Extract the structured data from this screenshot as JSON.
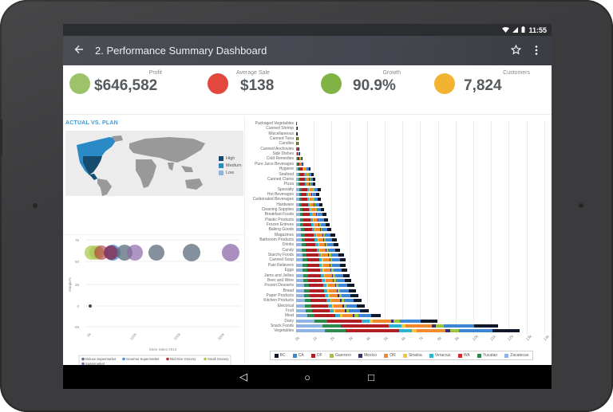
{
  "statusbar": {
    "wifi_icon": "wifi-icon",
    "signal_icon": "signal-icon",
    "battery_icon": "battery-icon",
    "time": "11:55"
  },
  "appbar": {
    "back_icon": "arrow-left-icon",
    "title": "2. Performance Summary Dashboard",
    "star_icon": "star-outline-icon",
    "more_icon": "more-vert-icon"
  },
  "kpis": [
    {
      "label": "Profit",
      "value": "$646,582",
      "color": "#9dc36a"
    },
    {
      "label": "Average Sale",
      "value": "$138",
      "color": "#e2483d"
    },
    {
      "label": "Growth",
      "value": "90.9%",
      "color": "#80b343"
    },
    {
      "label": "Customers",
      "value": "7,824",
      "color": "#f2b331"
    }
  ],
  "map_panel": {
    "title": "ACTUAL VS. PLAN",
    "legend": [
      {
        "label": "High",
        "color": "#154b6e"
      },
      {
        "label": "Medium",
        "color": "#2a8ac6"
      },
      {
        "label": "Low",
        "color": "#8fb4da"
      }
    ]
  },
  "chart_data": [
    {
      "type": "scatter",
      "title": "",
      "xlabel": "Store Sales 2013",
      "ylabel": "Margin%",
      "x_ticks": [
        "0k",
        "100k",
        "200k",
        "300k"
      ],
      "y_ticks": [
        "75",
        "50",
        "25",
        "0",
        "-25"
      ],
      "xlim": [
        0,
        340000
      ],
      "ylim": [
        -25,
        75
      ],
      "legend_position": "bottom",
      "series": [
        {
          "name": "Deluxe Supermarket",
          "color": "#5b6b7a",
          "points": [
            {
              "x": 0,
              "y": 0,
              "r": 1
            },
            {
              "x": 77000,
              "y": 60,
              "r": 8
            },
            {
              "x": 145000,
              "y": 60,
              "r": 8
            },
            {
              "x": 230000,
              "y": 60,
              "r": 9
            }
          ]
        },
        {
          "name": "Gourmet Supermarket",
          "color": "#4a90d9",
          "points": [
            {
              "x": 45000,
              "y": 60,
              "r": 8
            }
          ]
        },
        {
          "name": "Mid-Size Grocery",
          "color": "#b0303a",
          "points": [
            {
              "x": 18000,
              "y": 60,
              "r": 7
            },
            {
              "x": 42000,
              "y": 60,
              "r": 7
            }
          ]
        },
        {
          "name": "Small Grocery",
          "color": "#a8c84a",
          "points": [
            {
              "x": 6000,
              "y": 60,
              "r": 7
            },
            {
              "x": 12000,
              "y": 60,
              "r": 7
            }
          ]
        },
        {
          "name": "Supermarket",
          "color": "#8b6aa8",
          "points": [
            {
              "x": 100000,
              "y": 60,
              "r": 8
            },
            {
              "x": 320000,
              "y": 60,
              "r": 8
            }
          ]
        }
      ]
    },
    {
      "type": "bar",
      "orientation": "horizontal",
      "stacked": true,
      "xlabel": "",
      "ylabel": "",
      "x_ticks": [
        "0k",
        "1k",
        "2k",
        "3k",
        "4k",
        "5k",
        "6k",
        "7k",
        "8k",
        "9k",
        "10k",
        "11k",
        "12k",
        "13k",
        "14k"
      ],
      "xlim": [
        0,
        14000
      ],
      "legend_position": "bottom",
      "categories": [
        "Packaged Vegetables",
        "Canned Shrimp",
        "Miscellaneous",
        "Canned Tuna",
        "Candles",
        "Canned Anchovies",
        "Side Dishes",
        "Cold Remedies",
        "Pure Juice Beverages",
        "Hygiene",
        "Seafood",
        "Canned Clams",
        "Pizza",
        "Specialty",
        "Hot Beverages",
        "Carbonated Beverages",
        "Hardware",
        "Cleaning Supplies",
        "Breakfast Foods",
        "Plastic Products",
        "Frozen Entrees",
        "Baking Goods",
        "Magazines",
        "Bathroom Products",
        "Drinks",
        "Candy",
        "Starchy Foods",
        "Canned Soup",
        "Pain Relievers",
        "Eggs",
        "Jams and Jellies",
        "Beer and Wine",
        "Frozen Desserts",
        "Bread",
        "Paper Products",
        "Kitchen Products",
        "Electrical",
        "Fruit",
        "Meat",
        "Dairy",
        "Snack Foods",
        "Vegetables"
      ],
      "totals": [
        20,
        30,
        50,
        100,
        100,
        150,
        200,
        350,
        400,
        800,
        1000,
        1100,
        1100,
        1400,
        1300,
        1400,
        1500,
        1600,
        1700,
        1800,
        1900,
        2000,
        2200,
        2300,
        2400,
        2500,
        2700,
        2800,
        2800,
        2900,
        3000,
        3100,
        3300,
        3400,
        3500,
        3700,
        3900,
        4100,
        4800,
        8000,
        11400,
        12600
      ],
      "series": [
        {
          "name": "Zacatecas",
          "color": "#8fb4e3"
        },
        {
          "name": "Yucatan",
          "color": "#2e8b4e"
        },
        {
          "name": "DF",
          "color": "#b01f24"
        },
        {
          "name": "WA",
          "color": "#d42c2c"
        },
        {
          "name": "Veracruz",
          "color": "#2fb2d1"
        },
        {
          "name": "Sinaloa",
          "color": "#f7c53b"
        },
        {
          "name": "OR",
          "color": "#f08a2c"
        },
        {
          "name": "Mexico",
          "color": "#3a2a7a"
        },
        {
          "name": "Guerrero",
          "color": "#9dc33b"
        },
        {
          "name": "CA",
          "color": "#3d86d6"
        },
        {
          "name": "BC",
          "color": "#111827"
        }
      ],
      "segment_shares": [
        0.13,
        0.09,
        0.24,
        0.0,
        0.06,
        0.02,
        0.13,
        0.02,
        0.04,
        0.15,
        0.12
      ]
    }
  ],
  "bar_legend": [
    {
      "label": "BC",
      "color": "#111827"
    },
    {
      "label": "CA",
      "color": "#3d86d6"
    },
    {
      "label": "DF",
      "color": "#b01f24"
    },
    {
      "label": "Guerrero",
      "color": "#9dc33b"
    },
    {
      "label": "Mexico",
      "color": "#3a2a7a"
    },
    {
      "label": "OR",
      "color": "#f08a2c"
    },
    {
      "label": "Sinaloa",
      "color": "#f7c53b"
    },
    {
      "label": "Veracruz",
      "color": "#2fb2d1"
    },
    {
      "label": "WA",
      "color": "#d42c2c"
    },
    {
      "label": "Yucatan",
      "color": "#2e8b4e"
    },
    {
      "label": "Zacatecas",
      "color": "#8fb4e3"
    }
  ],
  "navbar": {
    "back": "◁",
    "home": "○",
    "recents": "□"
  }
}
